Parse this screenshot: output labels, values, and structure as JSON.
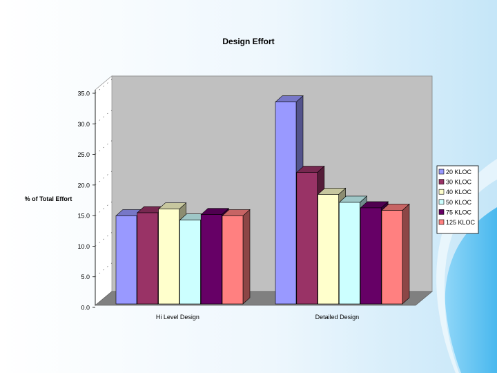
{
  "chart_data": {
    "type": "bar",
    "title": "Design Effort",
    "ylabel": "% of Total Effort",
    "xlabel": "",
    "ylim": [
      0,
      35
    ],
    "yticks": [
      "0.0",
      "5.0",
      "10.0",
      "15.0",
      "20.0",
      "25.0",
      "30.0",
      "35.0"
    ],
    "categories": [
      "Hi Level Design",
      "Detailed Design"
    ],
    "series": [
      {
        "name": "20 KLOC",
        "color": "#9999ff",
        "values": [
          14.4,
          33.0
        ]
      },
      {
        "name": "30 KLOC",
        "color": "#993366",
        "values": [
          14.9,
          21.5
        ]
      },
      {
        "name": "40 KLOC",
        "color": "#ffffcc",
        "values": [
          15.5,
          17.9
        ]
      },
      {
        "name": "50 KLOC",
        "color": "#ccffff",
        "values": [
          13.7,
          16.6
        ]
      },
      {
        "name": "75 KLOC",
        "color": "#660066",
        "values": [
          14.6,
          15.7
        ]
      },
      {
        "name": "125 KLOC",
        "color": "#ff8080",
        "values": [
          14.4,
          15.3
        ]
      }
    ],
    "grid": false,
    "legend": "right",
    "three_d": true
  }
}
